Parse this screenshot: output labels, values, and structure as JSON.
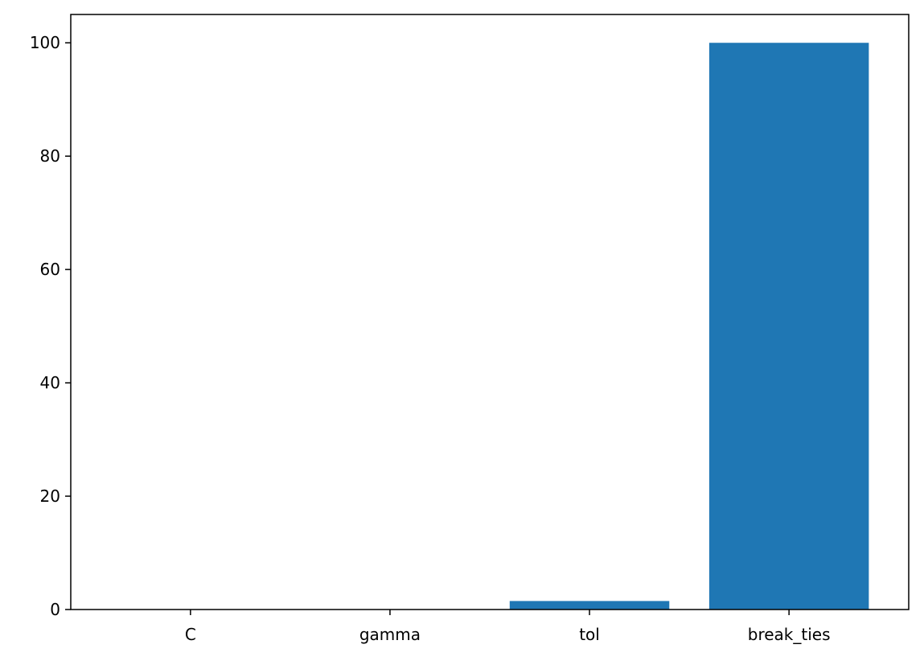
{
  "chart_data": {
    "type": "bar",
    "title": "",
    "xlabel": "",
    "ylabel": "",
    "categories": [
      "C",
      "gamma",
      "tol",
      "break_ties"
    ],
    "values": [
      0.02,
      0.02,
      1.5,
      100
    ],
    "ylim": [
      0,
      105
    ],
    "yticks": [
      0,
      20,
      40,
      60,
      80,
      100
    ],
    "ytick_labels": [
      "0",
      "20",
      "40",
      "60",
      "80",
      "100"
    ],
    "bar_color": "#1f77b4",
    "grid": false,
    "legend": "none"
  }
}
